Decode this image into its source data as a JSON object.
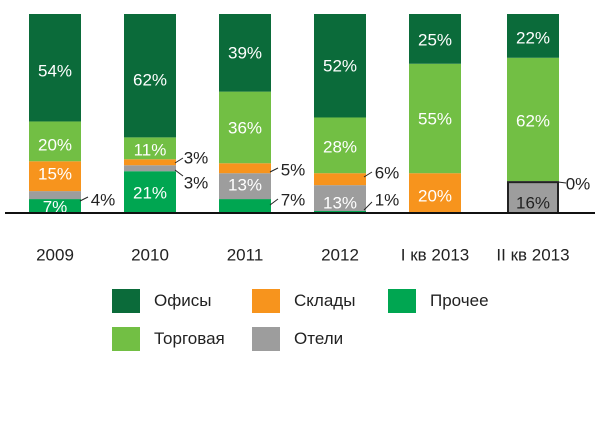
{
  "chart_data": {
    "type": "bar",
    "stacked": true,
    "categories": [
      "2009",
      "2010",
      "2011",
      "2012",
      "I кв 2013",
      "II кв 2013"
    ],
    "series": [
      {
        "name": "Прочее",
        "color": "#00a651",
        "values": [
          7,
          21,
          7,
          1,
          0,
          0
        ],
        "labels": [
          "7%",
          "21%",
          "7%",
          "1%",
          "",
          ""
        ]
      },
      {
        "name": "Отели",
        "color": "#9d9d9d",
        "values": [
          4,
          3,
          13,
          13,
          0,
          16
        ],
        "labels": [
          "4%",
          "3%",
          "13%",
          "13%",
          "",
          "16%"
        ]
      },
      {
        "name": "Склады",
        "color": "#f7941d",
        "values": [
          15,
          3,
          5,
          6,
          20,
          0
        ],
        "labels": [
          "15%",
          "3%",
          "5%",
          "6%",
          "20%",
          "0%"
        ]
      },
      {
        "name": "Торговая",
        "color": "#72bf44",
        "values": [
          20,
          11,
          36,
          28,
          55,
          62
        ],
        "labels": [
          "20%",
          "11%",
          "36%",
          "28%",
          "55%",
          "62%"
        ]
      },
      {
        "name": "Офисы",
        "color": "#0b6b3a",
        "values": [
          54,
          62,
          39,
          52,
          25,
          22
        ],
        "labels": [
          "54%",
          "62%",
          "39%",
          "52%",
          "25%",
          "22%"
        ]
      }
    ],
    "ylim": [
      0,
      100
    ],
    "grid": false,
    "legend": "bottom"
  },
  "legend": [
    {
      "name": "Офисы",
      "color": "#0b6b3a"
    },
    {
      "name": "Склады",
      "color": "#f7941d"
    },
    {
      "name": "Прочее",
      "color": "#00a651"
    },
    {
      "name": "Торговая",
      "color": "#72bf44"
    },
    {
      "name": "Отели",
      "color": "#9d9d9d"
    }
  ]
}
